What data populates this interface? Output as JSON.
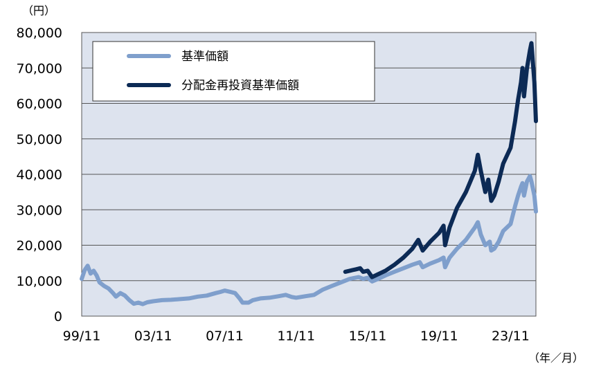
{
  "chart_data": {
    "type": "line",
    "ylabel_unit": "（円）",
    "xlabel_unit": "（年／月）",
    "ylim": [
      0,
      80000
    ],
    "yticks": [
      0,
      10000,
      20000,
      30000,
      40000,
      50000,
      60000,
      70000,
      80000
    ],
    "ytick_labels": [
      "0",
      "10,000",
      "20,000",
      "30,000",
      "40,000",
      "50,000",
      "60,000",
      "70,000",
      "80,000"
    ],
    "xlim": [
      "1999-11",
      "2025-04"
    ],
    "xticks": [
      "1999-11",
      "2003-11",
      "2007-11",
      "2011-11",
      "2015-11",
      "2019-11",
      "2023-11"
    ],
    "xtick_labels": [
      "99/11",
      "03/11",
      "07/11",
      "11/11",
      "15/11",
      "19/11",
      "23/11"
    ],
    "grid": "horizontal",
    "legend_position": "top-left",
    "series": [
      {
        "name": "基準価額",
        "color": "#7f9fcc",
        "points": [
          [
            "1999-11",
            10500
          ],
          [
            "2000-01",
            13000
          ],
          [
            "2000-03",
            14200
          ],
          [
            "2000-05",
            12000
          ],
          [
            "2000-07",
            12800
          ],
          [
            "2000-09",
            11500
          ],
          [
            "2000-11",
            9500
          ],
          [
            "2001-02",
            8500
          ],
          [
            "2001-05",
            7800
          ],
          [
            "2001-08",
            6500
          ],
          [
            "2001-10",
            5500
          ],
          [
            "2002-01",
            6500
          ],
          [
            "2002-04",
            5800
          ],
          [
            "2002-07",
            4500
          ],
          [
            "2002-10",
            3500
          ],
          [
            "2003-01",
            3800
          ],
          [
            "2003-04",
            3400
          ],
          [
            "2003-07",
            3900
          ],
          [
            "2003-11",
            4200
          ],
          [
            "2004-05",
            4500
          ],
          [
            "2004-11",
            4600
          ],
          [
            "2005-05",
            4800
          ],
          [
            "2005-11",
            5000
          ],
          [
            "2006-05",
            5500
          ],
          [
            "2006-11",
            5800
          ],
          [
            "2007-05",
            6500
          ],
          [
            "2007-08",
            6800
          ],
          [
            "2007-11",
            7200
          ],
          [
            "2008-03",
            6800
          ],
          [
            "2008-06",
            6500
          ],
          [
            "2008-09",
            5000
          ],
          [
            "2008-11",
            3800
          ],
          [
            "2009-03",
            3800
          ],
          [
            "2009-06",
            4500
          ],
          [
            "2009-11",
            5000
          ],
          [
            "2010-05",
            5200
          ],
          [
            "2010-11",
            5600
          ],
          [
            "2011-04",
            6000
          ],
          [
            "2011-08",
            5400
          ],
          [
            "2011-11",
            5200
          ],
          [
            "2012-05",
            5600
          ],
          [
            "2012-11",
            6000
          ],
          [
            "2013-05",
            7500
          ],
          [
            "2013-11",
            8500
          ],
          [
            "2014-05",
            9500
          ],
          [
            "2014-11",
            10500
          ],
          [
            "2015-05",
            11000
          ],
          [
            "2015-08",
            10500
          ],
          [
            "2015-11",
            10800
          ],
          [
            "2016-02",
            9800
          ],
          [
            "2016-06",
            10500
          ],
          [
            "2016-11",
            11500
          ],
          [
            "2017-05",
            12500
          ],
          [
            "2017-11",
            13500
          ],
          [
            "2018-05",
            14500
          ],
          [
            "2018-10",
            15200
          ],
          [
            "2018-12",
            13800
          ],
          [
            "2019-05",
            14800
          ],
          [
            "2019-11",
            15800
          ],
          [
            "2020-02",
            16500
          ],
          [
            "2020-03",
            13800
          ],
          [
            "2020-06",
            16500
          ],
          [
            "2020-11",
            19000
          ],
          [
            "2021-05",
            21500
          ],
          [
            "2021-11",
            25000
          ],
          [
            "2022-01",
            26500
          ],
          [
            "2022-03",
            23000
          ],
          [
            "2022-06",
            20000
          ],
          [
            "2022-09",
            21000
          ],
          [
            "2022-10",
            18500
          ],
          [
            "2022-12",
            19000
          ],
          [
            "2023-03",
            21000
          ],
          [
            "2023-06",
            24000
          ],
          [
            "2023-11",
            26000
          ],
          [
            "2024-02",
            31000
          ],
          [
            "2024-04",
            34000
          ],
          [
            "2024-06",
            36500
          ],
          [
            "2024-07",
            37500
          ],
          [
            "2024-08",
            34000
          ],
          [
            "2024-10",
            38000
          ],
          [
            "2024-12",
            39500
          ],
          [
            "2025-01",
            38000
          ],
          [
            "2025-03",
            34000
          ],
          [
            "2025-04",
            29500
          ]
        ]
      },
      {
        "name": "分配金再投資基準価額",
        "color": "#0c2a55",
        "points": [
          [
            "2014-08",
            12500
          ],
          [
            "2014-11",
            12800
          ],
          [
            "2015-03",
            13200
          ],
          [
            "2015-06",
            13500
          ],
          [
            "2015-08",
            12500
          ],
          [
            "2015-11",
            12800
          ],
          [
            "2016-02",
            11000
          ],
          [
            "2016-06",
            11800
          ],
          [
            "2016-11",
            12800
          ],
          [
            "2017-05",
            14500
          ],
          [
            "2017-11",
            16500
          ],
          [
            "2018-05",
            19000
          ],
          [
            "2018-09",
            21500
          ],
          [
            "2018-12",
            18500
          ],
          [
            "2019-05",
            21000
          ],
          [
            "2019-11",
            23500
          ],
          [
            "2020-02",
            25500
          ],
          [
            "2020-03",
            20000
          ],
          [
            "2020-06",
            25000
          ],
          [
            "2020-11",
            30500
          ],
          [
            "2021-05",
            35000
          ],
          [
            "2021-11",
            41000
          ],
          [
            "2022-01",
            45500
          ],
          [
            "2022-03",
            41000
          ],
          [
            "2022-06",
            35000
          ],
          [
            "2022-08",
            38500
          ],
          [
            "2022-10",
            32500
          ],
          [
            "2022-12",
            34000
          ],
          [
            "2023-03",
            38000
          ],
          [
            "2023-06",
            43000
          ],
          [
            "2023-11",
            47500
          ],
          [
            "2024-02",
            55000
          ],
          [
            "2024-04",
            61000
          ],
          [
            "2024-06",
            66000
          ],
          [
            "2024-07",
            70000
          ],
          [
            "2024-08",
            62000
          ],
          [
            "2024-10",
            70000
          ],
          [
            "2024-12",
            75000
          ],
          [
            "2025-01",
            77000
          ],
          [
            "2025-03",
            66000
          ],
          [
            "2025-04",
            55000
          ]
        ]
      }
    ]
  }
}
